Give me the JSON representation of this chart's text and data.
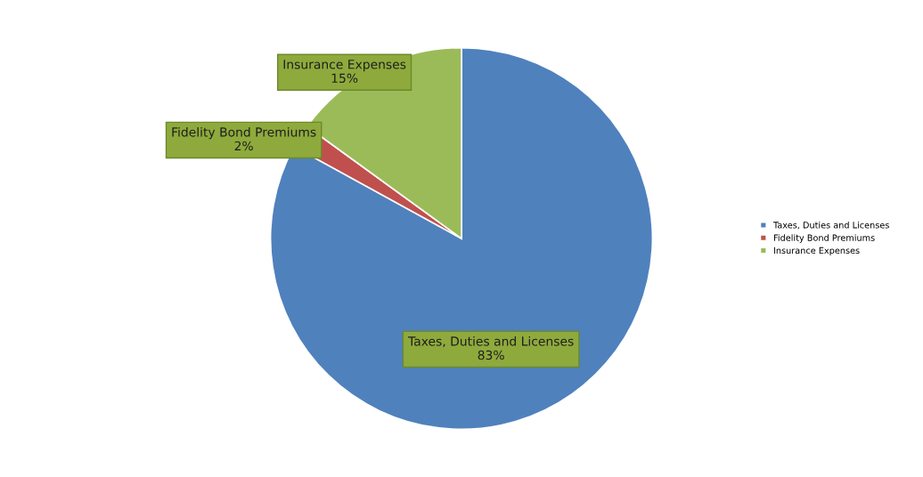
{
  "chart_data": {
    "type": "pie",
    "categories": [
      "Taxes, Duties and Licenses",
      "Fidelity Bond Premiums",
      "Insurance Expenses"
    ],
    "values": [
      83,
      2,
      15
    ],
    "colors": [
      "#4f81bd",
      "#c0504d",
      "#9bbb59"
    ],
    "value_labels": [
      "83%",
      "2%",
      "15%"
    ],
    "legend": "right"
  }
}
